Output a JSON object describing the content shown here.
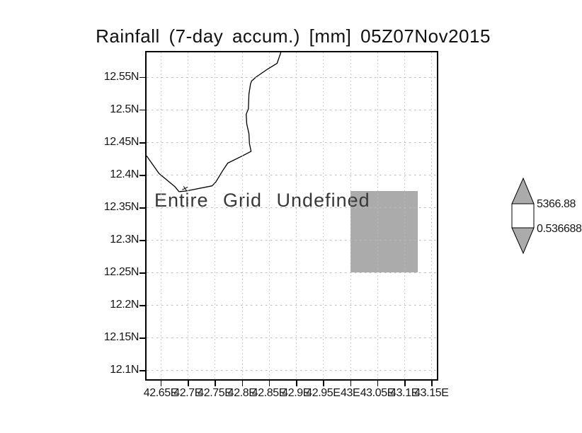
{
  "chart": {
    "title": "Rainfall (7-day accum.) [mm] 05Z07Nov2015",
    "annotation": "Entire Grid Undefined"
  },
  "colorbar": {
    "max_label": "5366.88",
    "min_label": "0.536688",
    "arrow_fill": "#ababab",
    "box_fill": "#ffffff"
  },
  "chart_data": {
    "type": "heatmap",
    "title": "Rainfall (7-day accum.) [mm] 05Z07Nov2015",
    "status_annotation": "Entire Grid Undefined",
    "grid": "dotted",
    "legend_position": "right-colorbar",
    "colorbar_labels": [
      "5366.88",
      "0.536688"
    ],
    "x_axis": {
      "range": [
        42.624,
        43.16
      ],
      "ticks": [
        {
          "v": 42.65,
          "label": "42.65E"
        },
        {
          "v": 42.7,
          "label": "42.7E"
        },
        {
          "v": 42.75,
          "label": "42.75E"
        },
        {
          "v": 42.8,
          "label": "42.8E"
        },
        {
          "v": 42.85,
          "label": "42.85E"
        },
        {
          "v": 42.9,
          "label": "42.9E"
        },
        {
          "v": 42.95,
          "label": "42.95E"
        },
        {
          "v": 43.0,
          "label": "43E"
        },
        {
          "v": 43.05,
          "label": "43.05E"
        },
        {
          "v": 43.1,
          "label": "43.1E"
        },
        {
          "v": 43.15,
          "label": "43.15E"
        }
      ]
    },
    "y_axis": {
      "range": [
        12.086,
        12.588
      ],
      "ticks": [
        {
          "v": 12.55,
          "label": "12.55N"
        },
        {
          "v": 12.5,
          "label": "12.5N"
        },
        {
          "v": 12.45,
          "label": "12.45N"
        },
        {
          "v": 12.4,
          "label": "12.4N"
        },
        {
          "v": 12.35,
          "label": "12.35N"
        },
        {
          "v": 12.3,
          "label": "12.3N"
        },
        {
          "v": 12.25,
          "label": "12.25N"
        },
        {
          "v": 12.2,
          "label": "12.2N"
        },
        {
          "v": 12.15,
          "label": "12.15N"
        },
        {
          "v": 12.1,
          "label": "12.1N"
        }
      ]
    },
    "undefined_region": {
      "lon": [
        43.0,
        43.125
      ],
      "lat": [
        12.25,
        12.375
      ],
      "fill": "#ababab"
    },
    "coastline": [
      [
        42.624,
        12.429
      ],
      [
        42.647,
        12.402
      ],
      [
        42.676,
        12.382
      ],
      [
        42.684,
        12.374
      ],
      [
        42.697,
        12.375
      ],
      [
        42.745,
        12.383
      ],
      [
        42.752,
        12.389
      ],
      [
        42.765,
        12.407
      ],
      [
        42.774,
        12.418
      ],
      [
        42.801,
        12.429
      ],
      [
        42.817,
        12.436
      ],
      [
        42.814,
        12.448
      ],
      [
        42.813,
        12.463
      ],
      [
        42.809,
        12.478
      ],
      [
        42.808,
        12.493
      ],
      [
        42.812,
        12.501
      ],
      [
        42.813,
        12.524
      ],
      [
        42.816,
        12.54
      ],
      [
        42.818,
        12.544
      ],
      [
        42.826,
        12.55
      ],
      [
        42.847,
        12.562
      ],
      [
        42.855,
        12.566
      ],
      [
        42.865,
        12.571
      ],
      [
        42.872,
        12.588
      ]
    ],
    "islet_marker": {
      "lon": 42.695,
      "lat": 12.379
    }
  }
}
